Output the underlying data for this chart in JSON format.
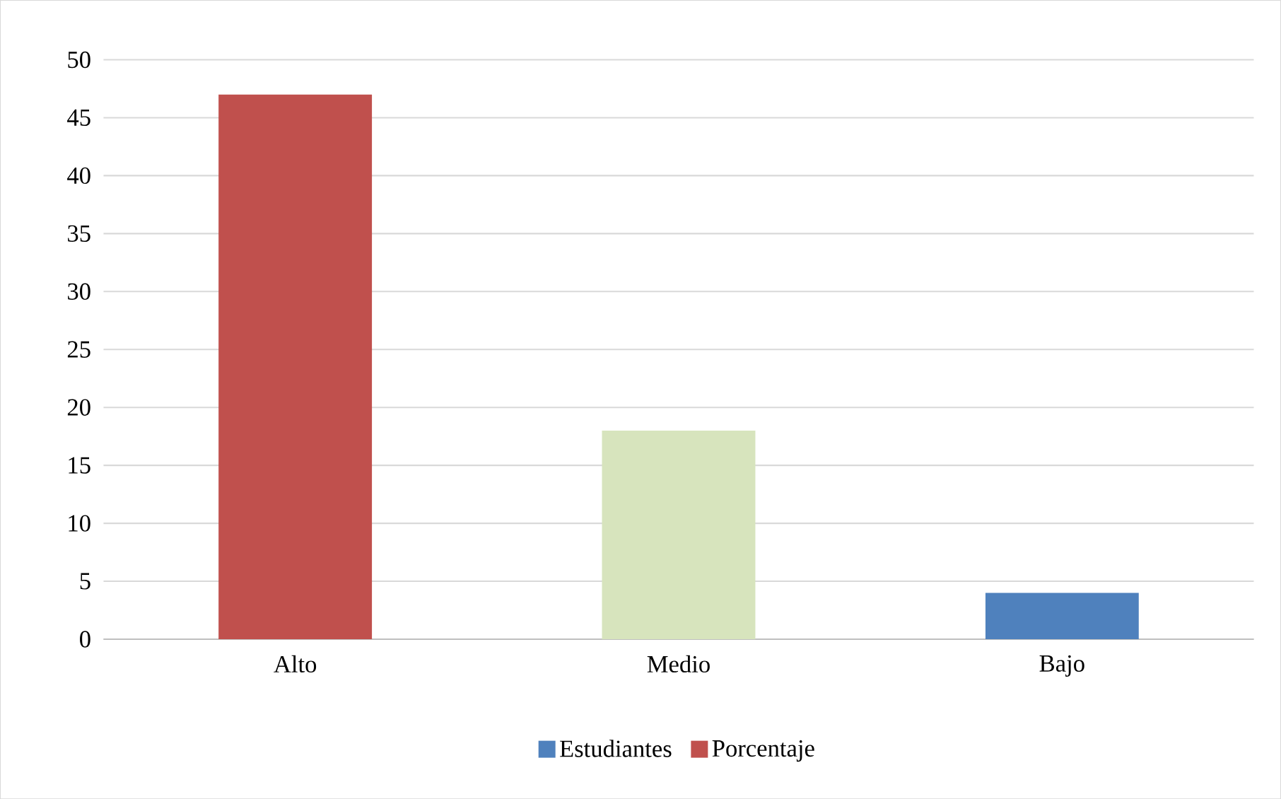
{
  "chart_data": {
    "type": "bar",
    "categories": [
      "Alto",
      "Medio",
      "Bajo"
    ],
    "series": [
      {
        "name": "Estudiantes",
        "color": "#4f81bd",
        "values": [
          null,
          null,
          4
        ]
      },
      {
        "name": "Porcentaje",
        "color": "#c0504d",
        "values": [
          47,
          null,
          null
        ]
      },
      {
        "color": "#d7e4bd",
        "values": [
          null,
          18,
          null
        ]
      }
    ],
    "ylim": [
      0,
      50
    ],
    "yticks": [
      0,
      5,
      10,
      15,
      20,
      25,
      30,
      35,
      40,
      45,
      50
    ],
    "grid": "y",
    "legend": "bottom"
  }
}
